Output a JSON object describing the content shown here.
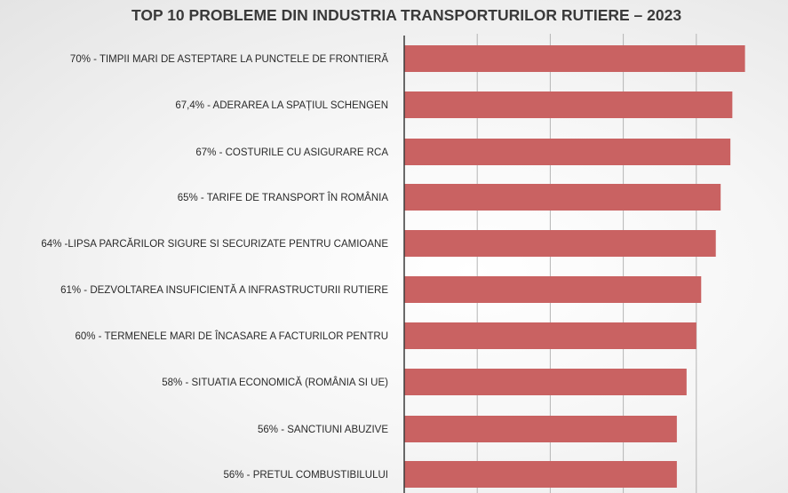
{
  "chart_data": {
    "type": "bar",
    "orientation": "horizontal",
    "title": "TOP 10 PROBLEME DIN INDUSTRIA TRANSPORTURILOR RUTIERE – 2023",
    "categories": [
      "70%  - TIMPII MARI DE ASTEPTARE LA PUNCTELE DE FRONTIERĂ",
      "67,4%  - ADERAREA LA SPAȚIUL SCHENGEN",
      "67%   - COSTURILE CU ASIGURARE RCA",
      "65%  - TARIFE DE TRANSPORT ÎN ROMÂNIA",
      "64%  -LIPSA PARCĂRILOR SIGURE SI SECURIZATE PENTRU CAMIOANE",
      "61%  - DEZVOLTAREA INSUFICIENTĂ A INFRASTRUCTURII RUTIERE",
      "60%  - TERMENELE MARI DE ÎNCASARE A FACTURILOR PENTRU",
      "58%  - SITUATIA ECONOMICĂ (ROMÂNIA SI UE)",
      "56%  - SANCTIUNI ABUZIVE",
      "56%  - PRETUL COMBUSTIBILULUI"
    ],
    "values": [
      70,
      67.4,
      67,
      65,
      64,
      61,
      60,
      58,
      56,
      56
    ],
    "xlim": [
      0,
      75
    ],
    "grid": true,
    "bar_color": "#c96262",
    "grid_color": "#b5b5b5",
    "axis_color": "#3a3a3a"
  }
}
